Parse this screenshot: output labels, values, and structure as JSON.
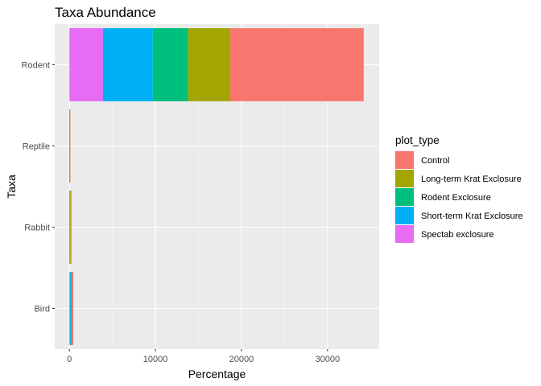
{
  "chart_data": {
    "type": "bar",
    "orientation": "horizontal",
    "stacked": true,
    "title": "Taxa Abundance",
    "xlabel": "Percentage",
    "ylabel": "Taxa",
    "xlim": [
      -1700,
      36000
    ],
    "xticks": [
      0,
      10000,
      20000,
      30000
    ],
    "xtick_labels": [
      "0",
      "10000",
      "20000",
      "30000"
    ],
    "categories": [
      "Bird",
      "Rabbit",
      "Reptile",
      "Rodent"
    ],
    "stack_order": [
      "Spectab exclosure",
      "Short-term Krat Exclosure",
      "Rodent Exclosure",
      "Long-term Krat Exclosure",
      "Control"
    ],
    "series": [
      {
        "name": "Control",
        "color": "#F8766D",
        "values": [
          150,
          30,
          5,
          15500
        ]
      },
      {
        "name": "Long-term Krat Exclosure",
        "color": "#A3A500",
        "values": [
          60,
          120,
          5,
          4900
        ]
      },
      {
        "name": "Rodent Exclosure",
        "color": "#00BF7D",
        "values": [
          60,
          10,
          5,
          4100
        ]
      },
      {
        "name": "Short-term Krat Exclosure",
        "color": "#00B0F6",
        "values": [
          120,
          10,
          5,
          5800
        ]
      },
      {
        "name": "Spectab exclosure",
        "color": "#E76BF3",
        "values": [
          60,
          10,
          2,
          3900
        ]
      }
    ],
    "legend_title": "plot_type",
    "legend_position": "right",
    "grid": true
  }
}
